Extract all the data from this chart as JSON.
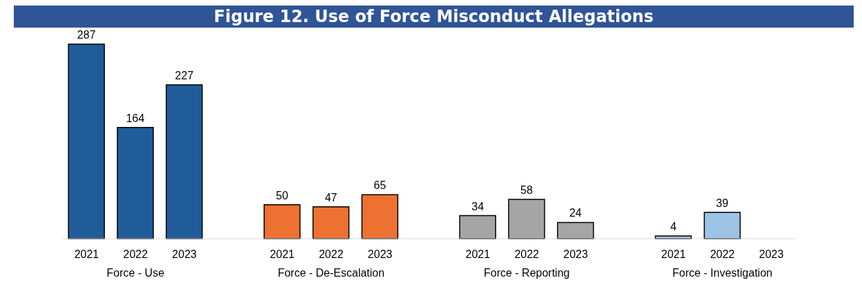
{
  "chart_data": {
    "type": "bar",
    "title": "Figure 12. Use of Force Misconduct Allegations",
    "categories": [
      "2021",
      "2022",
      "2023",
      null,
      "2021",
      "2022",
      "2023",
      null,
      "2021",
      "2022",
      "2023",
      null,
      "2021",
      "2022",
      "2023"
    ],
    "series": [
      {
        "name": "Force - Use",
        "color": "#1f5c99",
        "values": [
          287,
          164,
          227,
          null,
          null,
          null,
          null,
          null,
          null,
          null,
          null,
          null,
          null,
          null,
          null
        ]
      },
      {
        "name": "Force - De-Escalation",
        "color": "#ed7131",
        "values": [
          null,
          null,
          null,
          null,
          50,
          47,
          65,
          null,
          null,
          null,
          null,
          null,
          null,
          null,
          null
        ]
      },
      {
        "name": "Force - Reporting",
        "color": "#a5a5a5",
        "values": [
          null,
          null,
          null,
          null,
          null,
          null,
          null,
          null,
          34,
          58,
          24,
          null,
          null,
          null,
          null
        ]
      },
      {
        "name": "Force - Investigation",
        "color": "#9dc3e6",
        "values": [
          null,
          null,
          null,
          null,
          null,
          null,
          null,
          null,
          null,
          null,
          null,
          null,
          4,
          39,
          null
        ]
      }
    ],
    "data_labels": true
  }
}
